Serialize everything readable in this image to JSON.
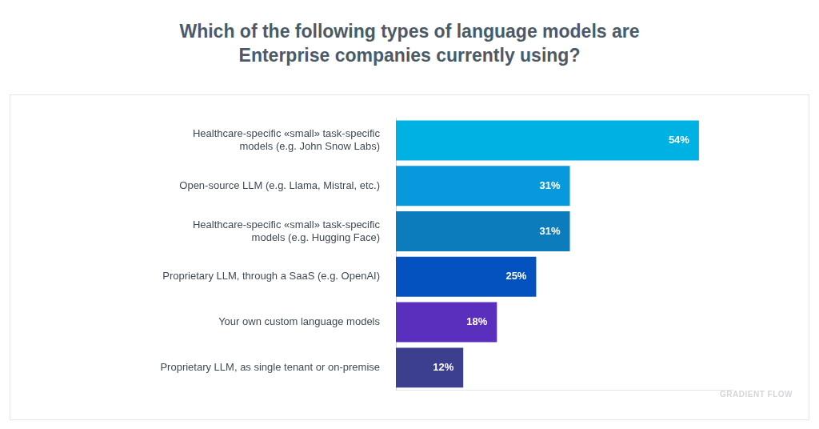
{
  "chart_data": {
    "type": "bar",
    "title": "Which of the following types of language models are Enterprise companies currently using?",
    "categories": [
      "Healthcare-specific «small» task-specific models (e.g. John Snow Labs)",
      "Open-source LLM (e.g. Llama, Mistral, etc.)",
      "Healthcare-specific «small» task-specific models (e.g. Hugging Face)",
      "Proprietary LLM, through a SaaS (e.g. OpenAI)",
      "Your own custom language models",
      "Proprietary LLM, as single tenant or on-premise"
    ],
    "values": [
      54,
      31,
      31,
      25,
      18,
      12
    ],
    "value_labels": [
      "54%",
      "31%",
      "31%",
      "25%",
      "18%",
      "12%"
    ],
    "colors": [
      "#00b2e3",
      "#0898dc",
      "#0c7cbd",
      "#0451c0",
      "#5a2fbd",
      "#3c3e8e"
    ],
    "xlim": [
      0,
      60
    ],
    "orientation": "horizontal",
    "grid": false,
    "data_labels": true,
    "tick_labels": "y",
    "annotations": [
      "GRADIENT FLOW"
    ]
  }
}
